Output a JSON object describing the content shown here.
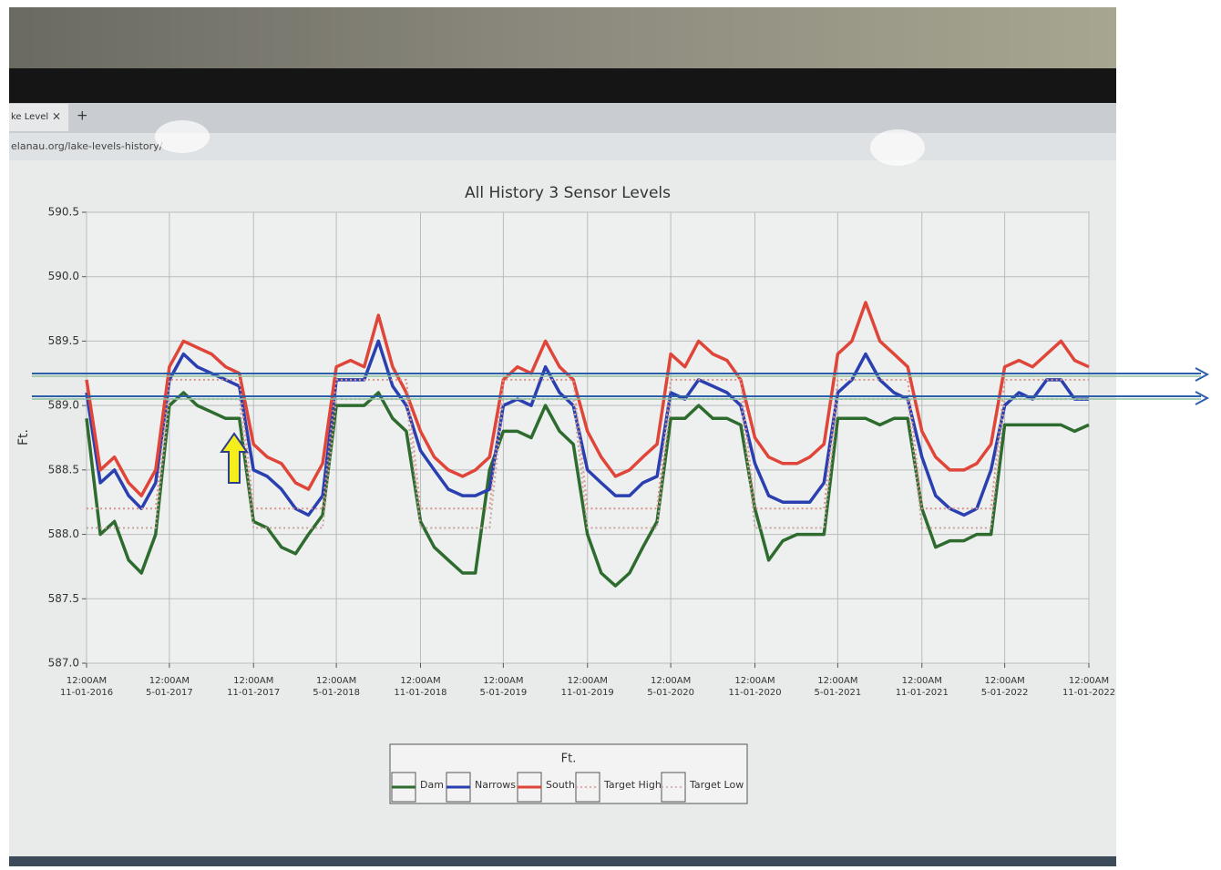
{
  "browser": {
    "tab": "ke Level",
    "url": "elanau.org/lake-levels-history/"
  },
  "chart_data": {
    "type": "line",
    "title": "All History 3 Sensor Levels",
    "y_label": "Ft.",
    "legend_title": "Ft.",
    "x": [
      "11-01-2016",
      "12-01-2016",
      "01-01-2017",
      "02-01-2017",
      "03-01-2017",
      "04-01-2017",
      "05-01-2017",
      "06-01-2017",
      "07-01-2017",
      "08-01-2017",
      "09-01-2017",
      "10-01-2017",
      "11-01-2017",
      "12-01-2017",
      "01-01-2018",
      "02-01-2018",
      "03-01-2018",
      "04-01-2018",
      "05-01-2018",
      "06-01-2018",
      "07-01-2018",
      "08-01-2018",
      "09-01-2018",
      "10-01-2018",
      "11-01-2018",
      "12-01-2018",
      "01-01-2019",
      "02-01-2019",
      "03-01-2019",
      "04-01-2019",
      "05-01-2019",
      "06-01-2019",
      "07-01-2019",
      "08-01-2019",
      "09-01-2019",
      "10-01-2019",
      "11-01-2019",
      "12-01-2019",
      "01-01-2020",
      "02-01-2020",
      "03-01-2020",
      "04-01-2020",
      "05-01-2020",
      "06-01-2020",
      "07-01-2020",
      "08-01-2020",
      "09-01-2020",
      "10-01-2020",
      "11-01-2020",
      "12-01-2020",
      "01-01-2021",
      "02-01-2021",
      "03-01-2021",
      "04-01-2021",
      "05-01-2021",
      "06-01-2021",
      "07-01-2021",
      "08-01-2021",
      "09-01-2021",
      "10-01-2021",
      "11-01-2021",
      "12-01-2021",
      "01-01-2022",
      "02-01-2022",
      "03-01-2022",
      "04-01-2022",
      "05-01-2022",
      "06-01-2022",
      "07-01-2022",
      "08-01-2022",
      "09-01-2022",
      "10-01-2022",
      "11-01-2022"
    ],
    "series": [
      {
        "name": "Dam",
        "color": "#2e6b2e",
        "dash": false,
        "values": [
          588.9,
          588.0,
          588.1,
          587.8,
          587.7,
          588.0,
          589.0,
          589.1,
          589.0,
          588.95,
          588.9,
          588.9,
          588.1,
          588.05,
          587.9,
          587.85,
          588.0,
          588.15,
          589.0,
          589.0,
          589.0,
          589.1,
          588.9,
          588.8,
          588.1,
          587.9,
          587.8,
          587.7,
          587.7,
          588.5,
          588.8,
          588.8,
          588.75,
          589.0,
          588.8,
          588.7,
          588.0,
          587.7,
          587.6,
          587.7,
          587.9,
          588.1,
          588.9,
          588.9,
          589.0,
          588.9,
          588.9,
          588.85,
          588.2,
          587.8,
          587.95,
          588.0,
          588.0,
          588.0,
          588.9,
          588.9,
          588.9,
          588.85,
          588.9,
          588.9,
          588.2,
          587.9,
          587.95,
          587.95,
          588.0,
          588.0,
          588.85,
          588.85,
          588.85,
          588.85,
          588.85,
          588.8,
          588.85
        ]
      },
      {
        "name": "Narrows",
        "color": "#2a3fb0",
        "dash": false,
        "values": [
          589.1,
          588.4,
          588.5,
          588.3,
          588.2,
          588.4,
          589.2,
          589.4,
          589.3,
          589.25,
          589.2,
          589.15,
          588.5,
          588.45,
          588.35,
          588.2,
          588.15,
          588.3,
          589.2,
          589.2,
          589.2,
          589.5,
          589.15,
          589.0,
          588.65,
          588.5,
          588.35,
          588.3,
          588.3,
          588.35,
          589.0,
          589.05,
          589.0,
          589.3,
          589.1,
          589.0,
          588.5,
          588.4,
          588.3,
          588.3,
          588.4,
          588.45,
          589.1,
          589.05,
          589.2,
          589.15,
          589.1,
          589.0,
          588.55,
          588.3,
          588.25,
          588.25,
          588.25,
          588.4,
          589.1,
          589.2,
          589.4,
          589.2,
          589.1,
          589.05,
          588.6,
          588.3,
          588.2,
          588.15,
          588.2,
          588.5,
          589.0,
          589.1,
          589.05,
          589.2,
          589.2,
          589.05,
          589.05
        ]
      },
      {
        "name": "South",
        "color": "#e0453a",
        "dash": false,
        "values": [
          589.2,
          588.5,
          588.6,
          588.4,
          588.3,
          588.5,
          589.3,
          589.5,
          589.45,
          589.4,
          589.3,
          589.25,
          588.7,
          588.6,
          588.55,
          588.4,
          588.35,
          588.55,
          589.3,
          589.35,
          589.3,
          589.7,
          589.3,
          589.1,
          588.8,
          588.6,
          588.5,
          588.45,
          588.5,
          588.6,
          589.2,
          589.3,
          589.25,
          589.5,
          589.3,
          589.2,
          588.8,
          588.6,
          588.45,
          588.5,
          588.6,
          588.7,
          589.4,
          589.3,
          589.5,
          589.4,
          589.35,
          589.2,
          588.75,
          588.6,
          588.55,
          588.55,
          588.6,
          588.7,
          589.4,
          589.5,
          589.8,
          589.5,
          589.4,
          589.3,
          588.8,
          588.6,
          588.5,
          588.5,
          588.55,
          588.7,
          589.3,
          589.35,
          589.3,
          589.4,
          589.5,
          589.35,
          589.3
        ]
      },
      {
        "name": "Target High",
        "color": "#d9938a",
        "dash": true,
        "values": [
          588.2,
          588.2,
          588.2,
          588.2,
          588.2,
          588.2,
          589.2,
          589.2,
          589.2,
          589.2,
          589.2,
          589.2,
          588.2,
          588.2,
          588.2,
          588.2,
          588.2,
          588.2,
          589.2,
          589.2,
          589.2,
          589.2,
          589.2,
          589.2,
          588.2,
          588.2,
          588.2,
          588.2,
          588.2,
          588.2,
          589.2,
          589.2,
          589.2,
          589.2,
          589.2,
          589.2,
          588.2,
          588.2,
          588.2,
          588.2,
          588.2,
          588.2,
          589.2,
          589.2,
          589.2,
          589.2,
          589.2,
          589.2,
          588.2,
          588.2,
          588.2,
          588.2,
          588.2,
          588.2,
          589.2,
          589.2,
          589.2,
          589.2,
          589.2,
          589.2,
          588.2,
          588.2,
          588.2,
          588.2,
          588.2,
          588.2,
          589.2,
          589.2,
          589.2,
          589.2,
          589.2,
          589.2,
          589.2
        ]
      },
      {
        "name": "Target Low",
        "color": "#c7a3a0",
        "dash": true,
        "values": [
          588.05,
          588.05,
          588.05,
          588.05,
          588.05,
          588.05,
          589.05,
          589.05,
          589.05,
          589.05,
          589.05,
          589.05,
          588.05,
          588.05,
          588.05,
          588.05,
          588.05,
          588.05,
          589.05,
          589.05,
          589.05,
          589.05,
          589.05,
          589.05,
          588.05,
          588.05,
          588.05,
          588.05,
          588.05,
          588.05,
          589.05,
          589.05,
          589.05,
          589.05,
          589.05,
          589.05,
          588.05,
          588.05,
          588.05,
          588.05,
          588.05,
          588.05,
          589.05,
          589.05,
          589.05,
          589.05,
          589.05,
          589.05,
          588.05,
          588.05,
          588.05,
          588.05,
          588.05,
          588.05,
          589.05,
          589.05,
          589.05,
          589.05,
          589.05,
          589.05,
          588.05,
          588.05,
          588.05,
          588.05,
          588.05,
          588.05,
          589.05,
          589.05,
          589.05,
          589.05,
          589.05,
          589.05,
          589.05
        ]
      }
    ],
    "xlim": [
      "11-01-2016",
      "11-01-2022"
    ],
    "xticks": [
      {
        "value": "11-01-2016",
        "label": "12:00AM 11-01-2016"
      },
      {
        "value": "05-01-2017",
        "label": "12:00AM 5-01-2017"
      },
      {
        "value": "11-01-2017",
        "label": "12:00AM 11-01-2017"
      },
      {
        "value": "05-01-2018",
        "label": "12:00AM 5-01-2018"
      },
      {
        "value": "11-01-2018",
        "label": "12:00AM 11-01-2018"
      },
      {
        "value": "05-01-2019",
        "label": "12:00AM 5-01-2019"
      },
      {
        "value": "11-01-2019",
        "label": "12:00AM 11-01-2019"
      },
      {
        "value": "05-01-2020",
        "label": "12:00AM 5-01-2020"
      },
      {
        "value": "11-01-2020",
        "label": "12:00AM 11-01-2020"
      },
      {
        "value": "05-01-2021",
        "label": "12:00AM 5-01-2021"
      },
      {
        "value": "11-01-2021",
        "label": "12:00AM 11-01-2021"
      },
      {
        "value": "05-01-2022",
        "label": "12:00AM 5-01-2022"
      },
      {
        "value": "11-01-2022",
        "label": "12:00AM 11-01-2022"
      }
    ],
    "ylim": [
      587.0,
      590.5
    ],
    "yticks": [
      {
        "value": 587,
        "label": "587.0"
      },
      {
        "value": 587.5,
        "label": "587.5"
      },
      {
        "value": 588,
        "label": "588.0"
      },
      {
        "value": 588.5,
        "label": "588.5"
      },
      {
        "value": 589,
        "label": "589.0"
      },
      {
        "value": 589.5,
        "label": "589.5"
      },
      {
        "value": 590,
        "label": "590.0"
      },
      {
        "value": 590.5,
        "label": "590.5"
      }
    ],
    "grid": true
  }
}
